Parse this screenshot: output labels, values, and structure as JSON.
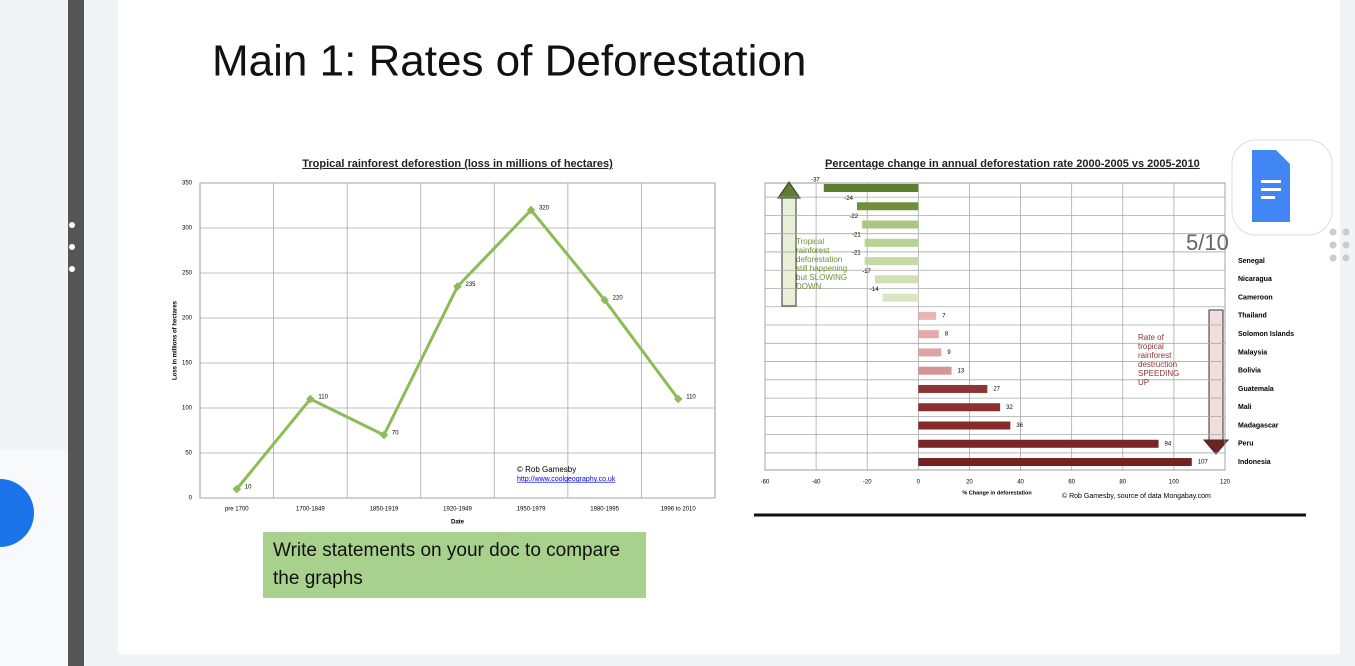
{
  "slide": {
    "title": "Main 1: Rates of Deforestation",
    "note": "Write statements on your doc to compare the graphs",
    "page": "5/10"
  },
  "chart_data": [
    {
      "type": "line",
      "title": "Tropical rainforest deforestion (loss in millions of hectares)",
      "categories": [
        "pre 1700",
        "1700-1849",
        "1850-1919",
        "1920-1949",
        "1950-1979",
        "1980-1995",
        "1996 to 2010"
      ],
      "values": [
        10,
        110,
        70,
        235,
        320,
        220,
        110
      ],
      "color": "#8dbb56",
      "ylim": [
        0,
        350
      ],
      "yticks": [
        0,
        50,
        100,
        150,
        200,
        250,
        300,
        350
      ],
      "xlabel": "Date",
      "ylabel": "Loss in millions of hectares",
      "grid": true,
      "annotations": [
        "© Rob Gamesby",
        "http://www.coolgeography.co.uk"
      ]
    },
    {
      "type": "bar",
      "orientation": "horizontal",
      "title": "Percentage change in annual deforestation rate 2000-2005 vs 2005-2010",
      "categories": [
        null,
        null,
        null,
        null,
        "Senegal",
        "Nicaragua",
        "Cameroon",
        "Thailand",
        "Solomon Islands",
        "Malaysia",
        "Bolivia",
        "Guatemala",
        "Mali",
        "Madagascar",
        "Peru",
        "Indonesia"
      ],
      "values": [
        -37,
        -24,
        -22,
        -21,
        -21,
        -17,
        -14,
        7,
        8,
        9,
        13,
        27,
        32,
        36,
        94,
        107
      ],
      "colors": [
        "#5e7f2e",
        "#6f9038",
        "#a9c77f",
        "#b8d293",
        "#c4d9a3",
        "#cfe0b4",
        "#d8e6c3",
        "#e8b4b4",
        "#e4a9a9",
        "#e0a3a3",
        "#d69595",
        "#8e3434",
        "#8a3030",
        "#842c2c",
        "#7a2626",
        "#722020"
      ],
      "xlim": [
        -60,
        120
      ],
      "xticks": [
        -60,
        -40,
        -20,
        0,
        20,
        40,
        60,
        80,
        100,
        120
      ],
      "xlabel": "% Change in deforestation",
      "grid": true,
      "annotations": [
        "Tropical rainforest deforestation still happening but SLOWING DOWN",
        "Rate of tropical rainforest destruction SPEEDING UP",
        "© Rob Gamesby, source of data Mongabay.com"
      ]
    }
  ]
}
